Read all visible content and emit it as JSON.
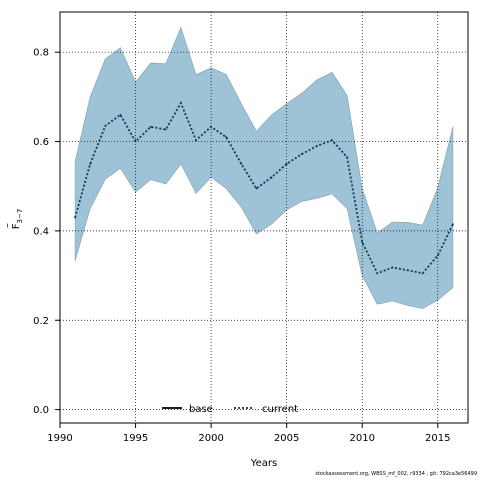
{
  "chart_data": {
    "type": "area",
    "xlabel": "Years",
    "ylabel": {
      "base": "F",
      "bar": "–",
      "subscript": "3−7"
    },
    "xlim": [
      1990,
      2017
    ],
    "ylim": [
      -0.03,
      0.89
    ],
    "x_ticks": [
      1990,
      1995,
      2000,
      2005,
      2010,
      2015
    ],
    "y_ticks": [
      "0.0",
      "0.2",
      "0.4",
      "0.6",
      "0.8"
    ],
    "grid": true,
    "legend_position": "bottom-center",
    "legend": [
      {
        "name": "base",
        "style": "solid",
        "color": "#000000"
      },
      {
        "name": "current",
        "style": "dotted",
        "color": "#0b3a59"
      }
    ],
    "x": [
      1991,
      1992,
      1993,
      1994,
      1995,
      1996,
      1997,
      1998,
      1999,
      2000,
      2001,
      2002,
      2003,
      2004,
      2005,
      2006,
      2007,
      2008,
      2009,
      2010,
      2011,
      2012,
      2013,
      2014,
      2015,
      2016
    ],
    "series": [
      {
        "name": "current",
        "color": "#0b3a59",
        "band_color": "#9fc3d6",
        "values": [
          0.43,
          0.55,
          0.635,
          0.66,
          0.6,
          0.633,
          0.627,
          0.686,
          0.603,
          0.633,
          0.61,
          0.55,
          0.495,
          0.52,
          0.55,
          0.572,
          0.59,
          0.603,
          0.565,
          0.375,
          0.305,
          0.318,
          0.312,
          0.305,
          0.345,
          0.415
        ],
        "lower": [
          0.333,
          0.45,
          0.516,
          0.54,
          0.487,
          0.515,
          0.505,
          0.55,
          0.484,
          0.52,
          0.495,
          0.453,
          0.393,
          0.415,
          0.447,
          0.466,
          0.473,
          0.483,
          0.45,
          0.3,
          0.236,
          0.243,
          0.233,
          0.226,
          0.245,
          0.273
        ],
        "upper": [
          0.555,
          0.7,
          0.785,
          0.81,
          0.733,
          0.776,
          0.774,
          0.855,
          0.75,
          0.765,
          0.75,
          0.685,
          0.623,
          0.66,
          0.685,
          0.708,
          0.738,
          0.755,
          0.703,
          0.495,
          0.395,
          0.42,
          0.419,
          0.413,
          0.497,
          0.633
        ]
      }
    ]
  },
  "footer_text": "stockassessment.org, WBSS_mf_002, r9334 , git: 792ca3e56499"
}
